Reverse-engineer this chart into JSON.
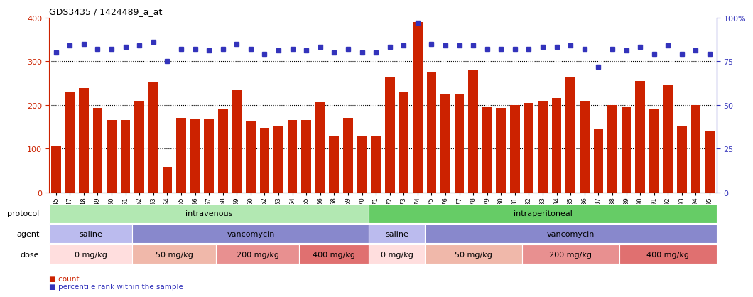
{
  "title": "GDS3435 / 1424489_a_at",
  "samples": [
    "GSM189045",
    "GSM189047",
    "GSM189048",
    "GSM189049",
    "GSM189050",
    "GSM189051",
    "GSM189052",
    "GSM189053",
    "GSM189054",
    "GSM189055",
    "GSM189056",
    "GSM189057",
    "GSM189058",
    "GSM189059",
    "GSM189060",
    "GSM189062",
    "GSM189063",
    "GSM189064",
    "GSM189065",
    "GSM189066",
    "GSM189068",
    "GSM189069",
    "GSM189070",
    "GSM189071",
    "GSM189072",
    "GSM189073",
    "GSM189074",
    "GSM189075",
    "GSM189076",
    "GSM189077",
    "GSM189078",
    "GSM189079",
    "GSM189080",
    "GSM189081",
    "GSM189082",
    "GSM189083",
    "GSM189084",
    "GSM189085",
    "GSM189086",
    "GSM189087",
    "GSM189088",
    "GSM189089",
    "GSM189090",
    "GSM189091",
    "GSM189092",
    "GSM189093",
    "GSM189094",
    "GSM189095"
  ],
  "bar_values": [
    105,
    228,
    238,
    193,
    165,
    165,
    210,
    252,
    58,
    170,
    168,
    168,
    190,
    235,
    162,
    148,
    153,
    165,
    165,
    208,
    130,
    170,
    130,
    130,
    265,
    230,
    390,
    275,
    225,
    225,
    280,
    195,
    193,
    200,
    205,
    210,
    215,
    265,
    210,
    145,
    200,
    195,
    255,
    190,
    245,
    152,
    200,
    140
  ],
  "percentile_values": [
    80,
    84,
    85,
    82,
    82,
    83,
    84,
    86,
    75,
    82,
    82,
    81,
    82,
    85,
    82,
    79,
    81,
    82,
    81,
    83,
    80,
    82,
    80,
    80,
    83,
    84,
    97,
    85,
    84,
    84,
    84,
    82,
    82,
    82,
    82,
    83,
    83,
    84,
    82,
    72,
    82,
    81,
    83,
    79,
    84,
    79,
    81,
    79
  ],
  "bar_color": "#cc2200",
  "percentile_color": "#3333bb",
  "ylim_left": [
    0,
    400
  ],
  "ylim_right": [
    0,
    100
  ],
  "yticks_left": [
    0,
    100,
    200,
    300,
    400
  ],
  "yticks_right": [
    0,
    25,
    50,
    75,
    100
  ],
  "ytick_right_labels": [
    "0",
    "25",
    "50",
    "75",
    "100%"
  ],
  "protocol_groups": [
    {
      "label": "intravenous",
      "start": 0,
      "end": 23,
      "color": "#b2e8b2"
    },
    {
      "label": "intraperitoneal",
      "start": 23,
      "end": 48,
      "color": "#66cc66"
    }
  ],
  "agent_groups": [
    {
      "label": "saline",
      "start": 0,
      "end": 6,
      "color": "#bbbbee"
    },
    {
      "label": "vancomycin",
      "start": 6,
      "end": 23,
      "color": "#8888cc"
    },
    {
      "label": "saline",
      "start": 23,
      "end": 27,
      "color": "#bbbbee"
    },
    {
      "label": "vancomycin",
      "start": 27,
      "end": 48,
      "color": "#8888cc"
    }
  ],
  "dose_groups": [
    {
      "label": "0 mg/kg",
      "start": 0,
      "end": 6,
      "color": "#ffdede"
    },
    {
      "label": "50 mg/kg",
      "start": 6,
      "end": 12,
      "color": "#f0b8aa"
    },
    {
      "label": "200 mg/kg",
      "start": 12,
      "end": 18,
      "color": "#e89090"
    },
    {
      "label": "400 mg/kg",
      "start": 18,
      "end": 23,
      "color": "#e07070"
    },
    {
      "label": "0 mg/kg",
      "start": 23,
      "end": 27,
      "color": "#ffdede"
    },
    {
      "label": "50 mg/kg",
      "start": 27,
      "end": 34,
      "color": "#f0b8aa"
    },
    {
      "label": "200 mg/kg",
      "start": 34,
      "end": 41,
      "color": "#e89090"
    },
    {
      "label": "400 mg/kg",
      "start": 41,
      "end": 48,
      "color": "#e07070"
    }
  ],
  "row_labels": [
    "protocol",
    "agent",
    "dose"
  ],
  "legend_count_color": "#cc2200",
  "legend_pct_color": "#3333bb"
}
